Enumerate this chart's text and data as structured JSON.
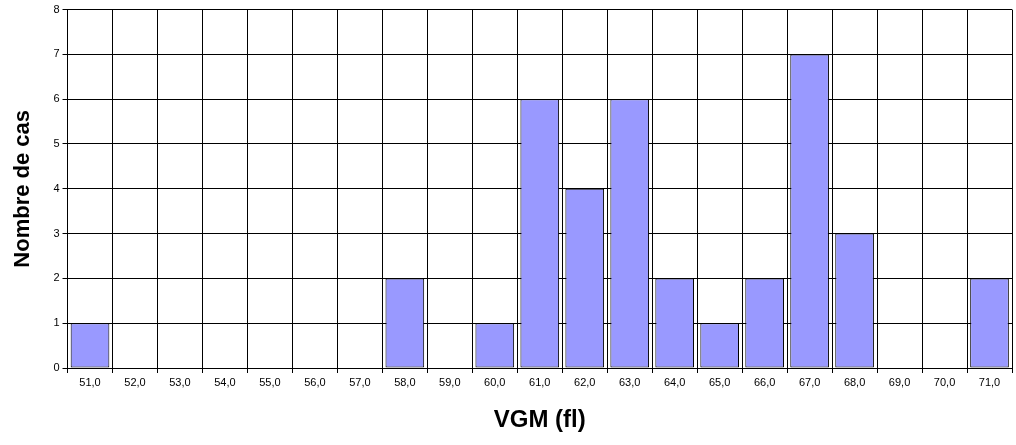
{
  "chart_data": {
    "type": "bar",
    "xlabel": "VGM (fl)",
    "ylabel": "Nombre de cas",
    "categories": [
      "51,0",
      "52,0",
      "53,0",
      "54,0",
      "55,0",
      "56,0",
      "57,0",
      "58,0",
      "59,0",
      "60,0",
      "61,0",
      "62,0",
      "63,0",
      "64,0",
      "65,0",
      "66,0",
      "67,0",
      "68,0",
      "69,0",
      "70,0",
      "71,0"
    ],
    "values": [
      1,
      0,
      0,
      0,
      0,
      0,
      0,
      2,
      0,
      1,
      6,
      4,
      6,
      2,
      1,
      2,
      7,
      3,
      0,
      0,
      2
    ],
    "color": "#9999ff",
    "ylim": [
      0,
      8
    ],
    "yticks": [
      0,
      1,
      2,
      3,
      4,
      5,
      6,
      7,
      8
    ],
    "grid": true,
    "legend": false
  }
}
